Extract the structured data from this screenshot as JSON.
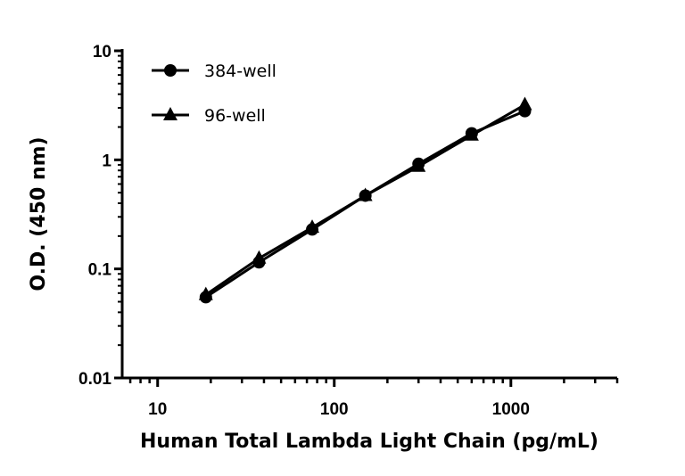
{
  "chart_data": {
    "type": "line",
    "title": "",
    "xlabel": "Human Total Lambda Light Chain (pg/mL)",
    "ylabel": "O.D. (450 nm)",
    "xscale": "log",
    "yscale": "log",
    "xlim": [
      6.3,
      4000
    ],
    "ylim": [
      0.01,
      10
    ],
    "xticks": [
      10,
      100,
      1000
    ],
    "xtick_labels": [
      "10",
      "100",
      "1000"
    ],
    "yticks": [
      0.01,
      0.1,
      1,
      10
    ],
    "ytick_labels": [
      "0.01",
      "0.1",
      "1",
      "10"
    ],
    "grid": false,
    "legend_position": "top-left",
    "x": [
      18.75,
      37.5,
      75,
      150,
      300,
      600,
      1200
    ],
    "series": [
      {
        "name": "384-well",
        "marker": "circle",
        "color": "#000000",
        "values": [
          0.055,
          0.115,
          0.23,
          0.47,
          0.92,
          1.75,
          2.8
        ]
      },
      {
        "name": "96-well",
        "marker": "triangle",
        "color": "#000000",
        "values": [
          0.058,
          0.125,
          0.24,
          0.47,
          0.87,
          1.68,
          3.2
        ]
      }
    ]
  }
}
